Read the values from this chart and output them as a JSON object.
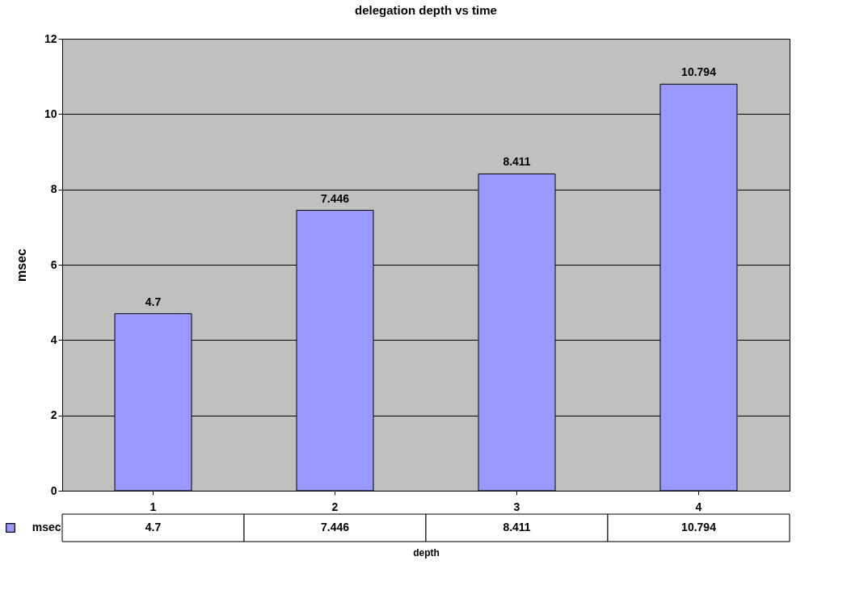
{
  "chart_data": {
    "type": "bar",
    "title": "delegation depth vs time",
    "xlabel": "depth",
    "ylabel": "msec",
    "categories": [
      "1",
      "2",
      "3",
      "4"
    ],
    "series": [
      {
        "name": "msec",
        "color": "#9999ff",
        "values": [
          4.7,
          7.446,
          8.411,
          10.794
        ],
        "value_labels": [
          "4.7",
          "7.446",
          "8.411",
          "10.794"
        ]
      }
    ],
    "ylim": [
      0,
      12
    ],
    "yticks": [
      0,
      2,
      4,
      6,
      8,
      10,
      12
    ],
    "grid": "y",
    "legend": "bottom left",
    "annotations": [
      "4.7",
      "7.446",
      "8.411",
      "10.794"
    ]
  }
}
